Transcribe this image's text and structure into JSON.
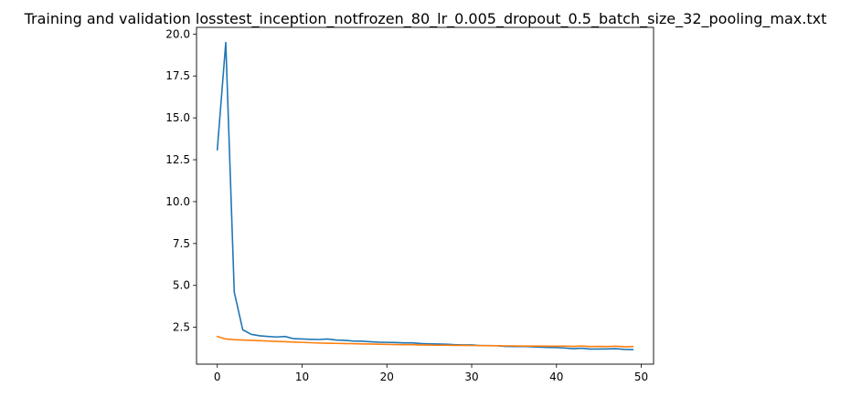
{
  "chart_data": {
    "type": "line",
    "title": "Training and validation losstest_inception_notfrozen_80_lr_0.005_dropout_0.5_batch_size_32_pooling_max.txt",
    "xlabel": "",
    "ylabel": "",
    "xlim": [
      -2.45,
      51.45
    ],
    "ylim": [
      0.3,
      20.4
    ],
    "x_ticks": [
      0,
      10,
      20,
      30,
      40,
      50
    ],
    "y_ticks": [
      2.5,
      5.0,
      7.5,
      10.0,
      12.5,
      15.0,
      17.5,
      20.0
    ],
    "grid": false,
    "legend": "none",
    "x": [
      0,
      1,
      2,
      3,
      4,
      5,
      6,
      7,
      8,
      9,
      10,
      11,
      12,
      13,
      14,
      15,
      16,
      17,
      18,
      19,
      20,
      21,
      22,
      23,
      24,
      25,
      26,
      27,
      28,
      29,
      30,
      31,
      32,
      33,
      34,
      35,
      36,
      37,
      38,
      39,
      40,
      41,
      42,
      43,
      44,
      45,
      46,
      47,
      48,
      49
    ],
    "series": [
      {
        "color": "#1f77b4",
        "values": [
          13.1,
          19.5,
          4.6,
          2.35,
          2.08,
          1.99,
          1.95,
          1.92,
          1.95,
          1.82,
          1.8,
          1.78,
          1.77,
          1.8,
          1.74,
          1.72,
          1.68,
          1.67,
          1.64,
          1.61,
          1.6,
          1.59,
          1.57,
          1.57,
          1.53,
          1.51,
          1.5,
          1.49,
          1.46,
          1.45,
          1.45,
          1.41,
          1.41,
          1.4,
          1.36,
          1.35,
          1.36,
          1.34,
          1.32,
          1.3,
          1.29,
          1.26,
          1.22,
          1.25,
          1.2,
          1.2,
          1.21,
          1.22,
          1.18,
          1.17
        ]
      },
      {
        "color": "#ff7f0e",
        "values": [
          1.95,
          1.8,
          1.76,
          1.74,
          1.72,
          1.7,
          1.68,
          1.66,
          1.64,
          1.62,
          1.6,
          1.58,
          1.56,
          1.55,
          1.54,
          1.53,
          1.52,
          1.51,
          1.5,
          1.49,
          1.48,
          1.47,
          1.46,
          1.46,
          1.45,
          1.44,
          1.43,
          1.43,
          1.42,
          1.42,
          1.41,
          1.41,
          1.4,
          1.4,
          1.39,
          1.39,
          1.38,
          1.38,
          1.38,
          1.37,
          1.37,
          1.37,
          1.36,
          1.38,
          1.35,
          1.36,
          1.35,
          1.37,
          1.34,
          1.35
        ]
      }
    ]
  }
}
